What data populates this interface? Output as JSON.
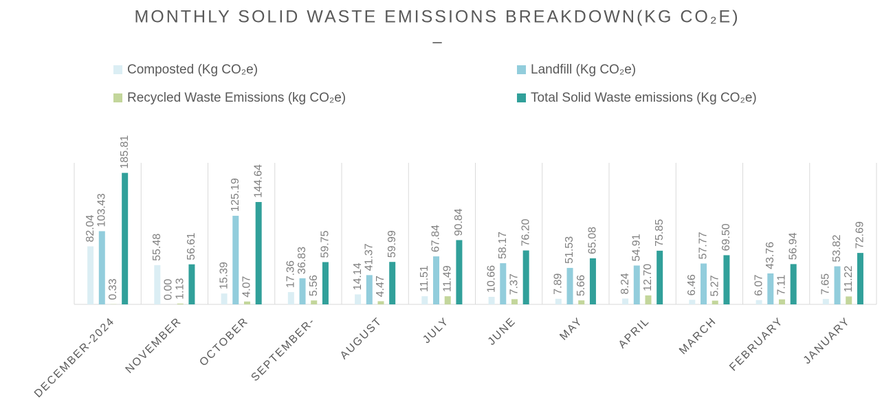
{
  "chart_data": {
    "type": "bar",
    "title": "MONTHLY SOLID WASTE EMISSIONS BREAKDOWN(KG CO₂E)",
    "subtitle": "–",
    "categories": [
      "DECEMBER-2024",
      "NOVEMBER",
      "OCTOBER",
      "SEPTEMBER-",
      "AUGUST",
      "JULY",
      "JUNE",
      "MAY",
      "APRIL",
      "MARCH",
      "FEBRUARY",
      "JANUARY"
    ],
    "ylim": [
      0,
      200
    ],
    "series": [
      {
        "name": "Composted (Kg CO₂e)",
        "color": "#dbeef4",
        "values": [
          82.04,
          55.48,
          15.39,
          17.36,
          14.14,
          11.51,
          10.66,
          7.89,
          8.24,
          6.46,
          6.07,
          7.65
        ],
        "value_labels": [
          "82.04",
          "55.48",
          "15.39",
          "17.36",
          "14.14",
          "11.51",
          "10.66",
          "7.89",
          "8.24",
          "6.46",
          "6.07",
          "7.65"
        ]
      },
      {
        "name": "Landfill (Kg CO₂e)",
        "color": "#92cddc",
        "values": [
          103.43,
          0,
          125.19,
          36.83,
          41.37,
          67.84,
          58.17,
          51.53,
          54.91,
          57.77,
          43.76,
          53.82
        ],
        "value_labels": [
          "103.43",
          "0.00",
          "125.19",
          "36.83",
          "41.37",
          "67.84",
          "58.17",
          "51.53",
          "54.91",
          "57.77",
          "43.76",
          "53.82"
        ]
      },
      {
        "name": "Recycled Waste Emissions (kg CO₂e)",
        "color": "#c3d69b",
        "values": [
          0.33,
          1.13,
          4.07,
          5.56,
          4.47,
          11.49,
          7.37,
          5.66,
          12.7,
          5.27,
          7.11,
          11.22
        ],
        "value_labels": [
          "0.33",
          "1.13",
          "4.07",
          "5.56",
          "4.47",
          "11.49",
          "7.37",
          "5.66",
          "12.70",
          "5.27",
          "7.11",
          "11.22"
        ]
      },
      {
        "name": "Total Solid Waste emissions (Kg CO₂e)",
        "color": "#31a09a",
        "values": [
          185.81,
          56.61,
          144.64,
          59.75,
          59.99,
          90.84,
          76.2,
          65.08,
          75.85,
          69.5,
          56.94,
          72.69
        ],
        "value_labels": [
          "185.81",
          "56.61",
          "144.64",
          "59.75",
          "59.99",
          "90.84",
          "76.20",
          "65.08",
          "75.85",
          "69.50",
          "56.94",
          "72.69"
        ]
      }
    ]
  }
}
